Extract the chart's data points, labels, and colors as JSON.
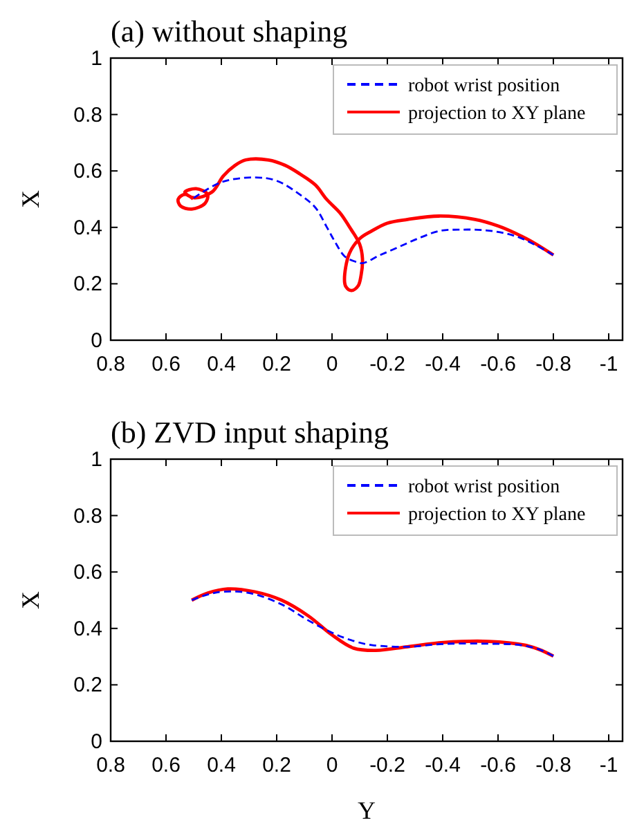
{
  "chart_data": [
    {
      "type": "line",
      "title": "(a) without shaping",
      "ylabel": "X",
      "xlim": [
        0.8,
        -1.05
      ],
      "ylim": [
        0,
        1
      ],
      "xticks": [
        0.8,
        0.6,
        0.4,
        0.2,
        0,
        -0.2,
        -0.4,
        -0.6,
        -0.8,
        -1
      ],
      "yticks": [
        0,
        0.2,
        0.4,
        0.6,
        0.8,
        1
      ],
      "grid": false,
      "legend": "top right",
      "series": [
        {
          "name": "robot wrist position",
          "color": "#0000ff",
          "line_style": "dashed",
          "x": [
            0.5,
            0.4,
            0.28,
            0.2,
            0.117,
            0.06,
            0.02,
            -0.01,
            -0.045,
            -0.08,
            -0.11,
            -0.17,
            -0.24,
            -0.31,
            -0.387,
            -0.47,
            -0.55,
            -0.62,
            -0.68,
            -0.74,
            -0.8
          ],
          "values": [
            0.504,
            0.56,
            0.577,
            0.565,
            0.517,
            0.47,
            0.403,
            0.35,
            0.298,
            0.28,
            0.273,
            0.3,
            0.33,
            0.36,
            0.387,
            0.392,
            0.39,
            0.38,
            0.363,
            0.335,
            0.302
          ]
        },
        {
          "name": "projection to XY plane",
          "color": "#ff0000",
          "line_style": "solid",
          "x": [
            0.502,
            0.532,
            0.556,
            0.548,
            0.507,
            0.459,
            0.45,
            0.491,
            0.532,
            0.5,
            0.434,
            0.393,
            0.35,
            0.312,
            0.23,
            0.17,
            0.117,
            0.06,
            0.02,
            -0.03,
            -0.062,
            -0.1,
            -0.11,
            -0.105,
            -0.094,
            -0.07,
            -0.05,
            -0.045,
            -0.062,
            -0.1,
            -0.143,
            -0.2,
            -0.273,
            -0.387,
            -0.517,
            -0.6,
            -0.663,
            -0.73,
            -0.8
          ],
          "values": [
            0.501,
            0.517,
            0.5,
            0.476,
            0.465,
            0.485,
            0.517,
            0.537,
            0.525,
            0.505,
            0.525,
            0.582,
            0.62,
            0.639,
            0.639,
            0.62,
            0.59,
            0.55,
            0.5,
            0.45,
            0.403,
            0.34,
            0.289,
            0.23,
            0.192,
            0.176,
            0.19,
            0.216,
            0.306,
            0.36,
            0.387,
            0.415,
            0.428,
            0.44,
            0.428,
            0.405,
            0.379,
            0.345,
            0.302
          ]
        }
      ]
    },
    {
      "type": "line",
      "title": "(b) ZVD input shaping",
      "xlabel": "Y",
      "ylabel": "X",
      "xlim": [
        0.8,
        -1.05
      ],
      "ylim": [
        0,
        1
      ],
      "xticks": [
        0.8,
        0.6,
        0.4,
        0.2,
        0,
        -0.2,
        -0.4,
        -0.6,
        -0.8,
        -1
      ],
      "yticks": [
        0,
        0.2,
        0.4,
        0.6,
        0.8,
        1
      ],
      "grid": false,
      "legend": "top right",
      "series": [
        {
          "name": "robot wrist position",
          "color": "#0000ff",
          "line_style": "dashed",
          "x": [
            0.507,
            0.45,
            0.393,
            0.296,
            0.182,
            0.085,
            -0.013,
            -0.08,
            -0.143,
            -0.273,
            -0.403,
            -0.55,
            -0.68,
            -0.75,
            -0.8
          ],
          "values": [
            0.5,
            0.52,
            0.53,
            0.525,
            0.485,
            0.428,
            0.379,
            0.355,
            0.341,
            0.335,
            0.345,
            0.346,
            0.341,
            0.325,
            0.302
          ]
        },
        {
          "name": "projection to XY plane",
          "color": "#ff0000",
          "line_style": "solid",
          "x": [
            0.507,
            0.45,
            0.377,
            0.28,
            0.182,
            0.085,
            0.003,
            -0.078,
            -0.159,
            -0.273,
            -0.403,
            -0.566,
            -0.696,
            -0.75,
            -0.8
          ],
          "values": [
            0.5,
            0.525,
            0.54,
            0.53,
            0.5,
            0.444,
            0.379,
            0.33,
            0.322,
            0.335,
            0.35,
            0.354,
            0.341,
            0.325,
            0.302
          ]
        }
      ]
    }
  ]
}
